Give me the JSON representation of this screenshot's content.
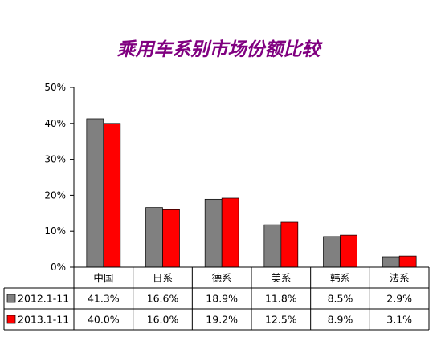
{
  "chart_data": {
    "type": "bar",
    "title": "乘用车系别市场份额比较",
    "categories": [
      "中国",
      "日系",
      "德系",
      "美系",
      "韩系",
      "法系"
    ],
    "series": [
      {
        "name": "2012.1-11",
        "values": [
          41.3,
          16.6,
          18.9,
          11.8,
          8.5,
          2.9
        ],
        "labels": [
          "41.3%",
          "16.6%",
          "18.9%",
          "11.8%",
          "8.5%",
          "2.9%"
        ],
        "color": "#808080"
      },
      {
        "name": "2013.1-11",
        "values": [
          40.0,
          16.0,
          19.2,
          12.5,
          8.9,
          3.1
        ],
        "labels": [
          "40.0%",
          "16.0%",
          "19.2%",
          "12.5%",
          "8.9%",
          "3.1%"
        ],
        "color": "#ff0000"
      }
    ],
    "ylim": [
      0,
      50
    ],
    "yticks": [
      0,
      10,
      20,
      30,
      40,
      50
    ],
    "ytick_labels": [
      "0%",
      "10%",
      "20%",
      "30%",
      "40%",
      "50%"
    ],
    "grid": false,
    "legend": "data-table",
    "data_table": true
  }
}
